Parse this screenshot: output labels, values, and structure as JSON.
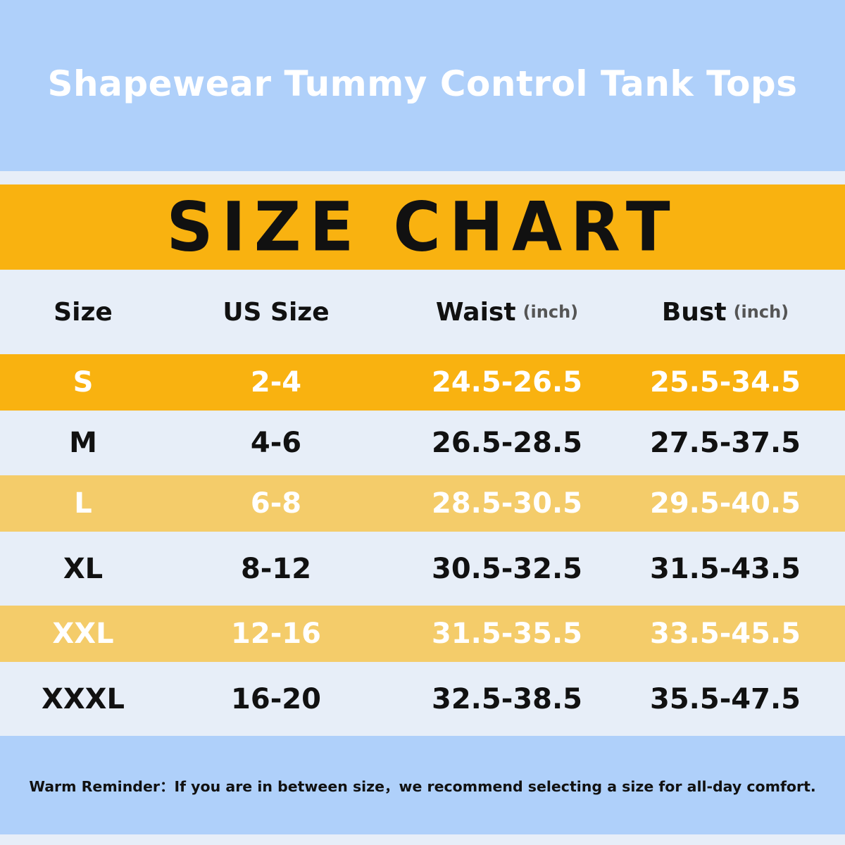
{
  "header": {
    "title": "Shapewear Tummy Control Tank Tops"
  },
  "banner": {
    "title": "SIZE CHART"
  },
  "table": {
    "columns": [
      {
        "name": "Size"
      },
      {
        "name": "US Size"
      },
      {
        "name": "Waist",
        "unit": "(inch)"
      },
      {
        "name": "Bust",
        "unit": "(inch)"
      }
    ],
    "rows": [
      [
        "S",
        "2-4",
        "24.5-26.5",
        "25.5-34.5"
      ],
      [
        "M",
        "4-6",
        "26.5-28.5",
        "27.5-37.5"
      ],
      [
        "L",
        "6-8",
        "28.5-30.5",
        "29.5-40.5"
      ],
      [
        "XL",
        "8-12",
        "30.5-32.5",
        "31.5-43.5"
      ],
      [
        "XXL",
        "12-16",
        "31.5-35.5",
        "33.5-45.5"
      ],
      [
        "XXXL",
        "16-20",
        "32.5-38.5",
        "35.5-47.5"
      ]
    ]
  },
  "footer": {
    "note": "Warm Reminder：If you are in between size，we recommend selecting a size for all-day comfort."
  }
}
